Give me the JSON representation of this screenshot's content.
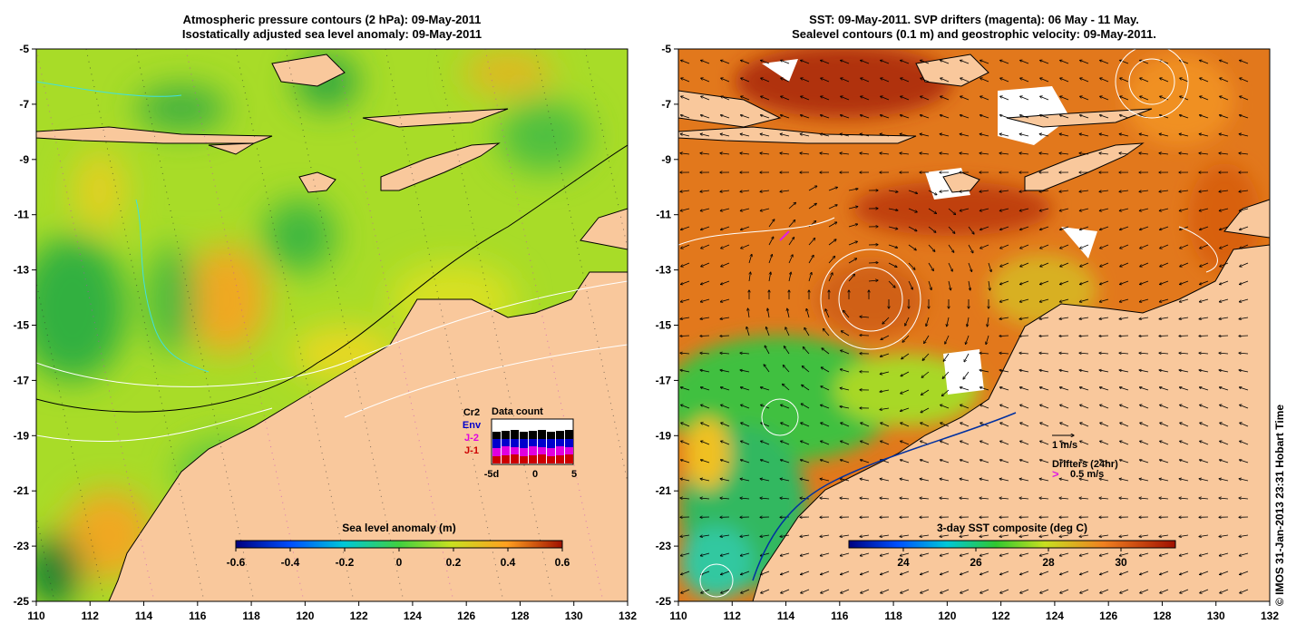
{
  "left_panel": {
    "title_line1": "Atmospheric pressure contours (2 hPa): 09-May-2011",
    "title_line2": "Isostatically adjusted sea level anomaly: 09-May-2011",
    "x_ticks": [
      "110",
      "112",
      "114",
      "116",
      "118",
      "120",
      "122",
      "124",
      "126",
      "128",
      "130",
      "132"
    ],
    "y_ticks": [
      "-5",
      "-7",
      "-9",
      "-11",
      "-13",
      "-15",
      "-17",
      "-19",
      "-21",
      "-23",
      "-25"
    ],
    "colorbar": {
      "title": "Sea level anomaly (m)",
      "ticks": [
        "-0.6",
        "-0.4",
        "-0.2",
        "0",
        "0.2",
        "0.4",
        "0.6"
      ],
      "range": [
        -0.6,
        0.6
      ]
    },
    "data_count": {
      "title": "Data count",
      "missions": [
        {
          "label": "Cr2",
          "color": "#000000"
        },
        {
          "label": "Env",
          "color": "#0000cc"
        },
        {
          "label": "J-2",
          "color": "#e000e0"
        },
        {
          "label": "J-1",
          "color": "#cc0000"
        }
      ],
      "x_ticks": [
        "-5d",
        "0",
        "5"
      ]
    }
  },
  "right_panel": {
    "title_line1": "SST: 09-May-2011. SVP drifters (magenta): 06 May - 11 May.",
    "title_line2": "Sealevel contours (0.1 m) and geostrophic velocity: 09-May-2011.",
    "x_ticks": [
      "110",
      "112",
      "114",
      "116",
      "118",
      "120",
      "122",
      "124",
      "126",
      "128",
      "130",
      "132"
    ],
    "y_ticks": [
      "-5",
      "-7",
      "-9",
      "-11",
      "-13",
      "-15",
      "-17",
      "-19",
      "-21",
      "-23",
      "-25"
    ],
    "colorbar": {
      "title": "3-day SST composite (deg C)",
      "ticks": [
        "24",
        "26",
        "28",
        "30"
      ],
      "range": [
        22.5,
        31.5
      ]
    },
    "velocity_legend": {
      "label": "1 m/s",
      "drifters_label": "Drifters (24hr)",
      "drifters_speed": "0.5 m/s"
    }
  },
  "map_extent": {
    "lon": [
      110,
      132
    ],
    "lat": [
      -25,
      -5
    ]
  },
  "colors": {
    "land": "#f9c89c",
    "sla_base": "#a8dc28",
    "sst_base": "#e2781c",
    "drifter": "#e020e0"
  },
  "copyright": "© IMOS 31-Jan-2013 23:31 Hobart Time"
}
